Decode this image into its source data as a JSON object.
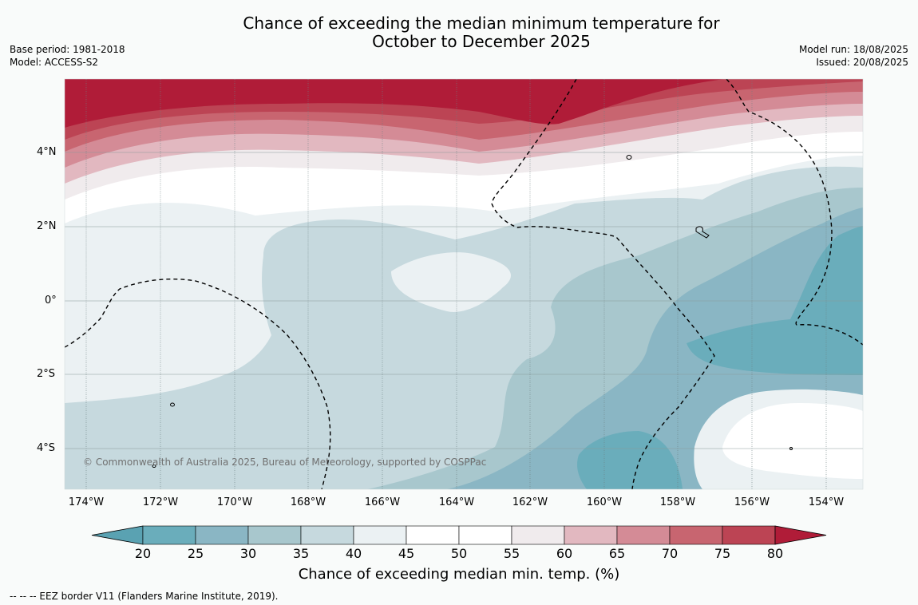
{
  "title_line1": "Chance of exceeding the median minimum temperature for",
  "title_line2": "October to December 2025",
  "meta_left": {
    "base_period": "Base period: 1981-2018",
    "model": "Model: ACCESS-S2"
  },
  "meta_right": {
    "model_run": "Model run: 18/08/2025",
    "issued": "Issued: 20/08/2025"
  },
  "map": {
    "lat_labels": [
      "4°N",
      "2°N",
      "0°",
      "2°S",
      "4°S"
    ],
    "lon_labels": [
      "174°W",
      "172°W",
      "170°W",
      "168°W",
      "166°W",
      "164°W",
      "162°W",
      "160°W",
      "158°W",
      "156°W",
      "154°W"
    ],
    "credit": "© Commonwealth of Australia 2025, Bureau of Meteorology, supported by COSPPac"
  },
  "colorbar": {
    "ticks": [
      "20",
      "25",
      "30",
      "35",
      "40",
      "45",
      "50",
      "55",
      "60",
      "65",
      "70",
      "75",
      "80"
    ],
    "colors": [
      "#6aadbb",
      "#8ab6c4",
      "#a8c7cd",
      "#c6d9de",
      "#ebf1f3",
      "#ffffff",
      "#ffffff",
      "#f0ebed",
      "#e2b8c0",
      "#d48b96",
      "#c86570",
      "#bc4454"
    ],
    "under_color": "#5aa2b2",
    "over_color": "#b01c38",
    "label": "Chance of exceeding median min. temp. (%)"
  },
  "footer": "--  --  -- EEZ border V11 (Flanders Marine Institute, 2019)."
}
